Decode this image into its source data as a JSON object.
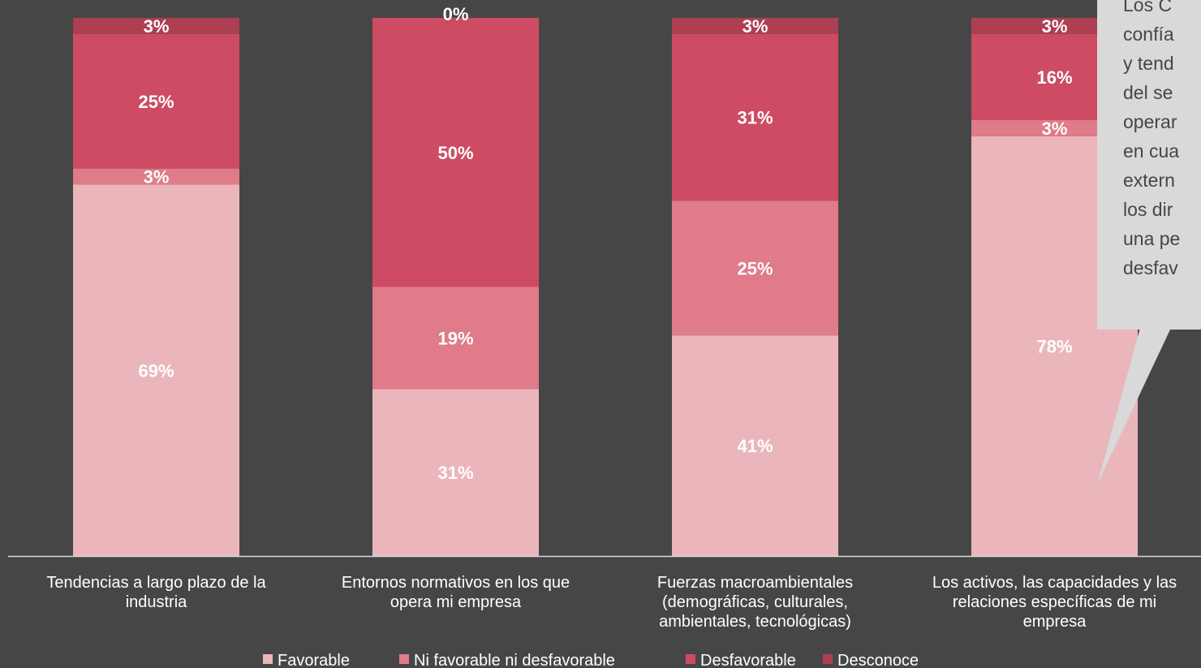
{
  "chart_data": {
    "type": "bar",
    "stacked": true,
    "categories": [
      [
        "Tendencias a largo plazo de la",
        "industria"
      ],
      [
        "Entornos normativos en los que",
        "opera mi empresa"
      ],
      [
        "Fuerzas macroambientales",
        "(demográficas, culturales,",
        "ambientales, tecnológicas)"
      ],
      [
        "Los activos, las capacidades y las",
        "relaciones específicas de mi",
        "empresa"
      ]
    ],
    "series": [
      {
        "name": "Favorable",
        "color": "#ebb6bb",
        "values": [
          69,
          31,
          41,
          78
        ]
      },
      {
        "name": "Ni favorable ni desfavorable",
        "color": "#e07b89",
        "values": [
          3,
          19,
          25,
          3
        ]
      },
      {
        "name": "Desfavorable",
        "color": "#cd4c63",
        "values": [
          25,
          50,
          31,
          16
        ]
      },
      {
        "name": "Desconoce",
        "color": "#ad3f52",
        "values": [
          3,
          0,
          3,
          3
        ]
      }
    ],
    "data_labels": [
      [
        "69%",
        "31%",
        "41%",
        "78%"
      ],
      [
        "3%",
        "19%",
        "25%",
        "3%"
      ],
      [
        "25%",
        "50%",
        "31%",
        "16%"
      ],
      [
        "3%",
        "0%",
        "3%",
        "3%"
      ]
    ],
    "ylim": [
      0,
      100
    ],
    "grid": false,
    "legend_position": "bottom"
  },
  "callout": {
    "lines": [
      "Los C",
      "confía",
      "y tend",
      "del se",
      "operar",
      "en cua",
      "extern",
      "los dir",
      "una pe",
      "desfav"
    ],
    "color": "#d9d9d9"
  }
}
